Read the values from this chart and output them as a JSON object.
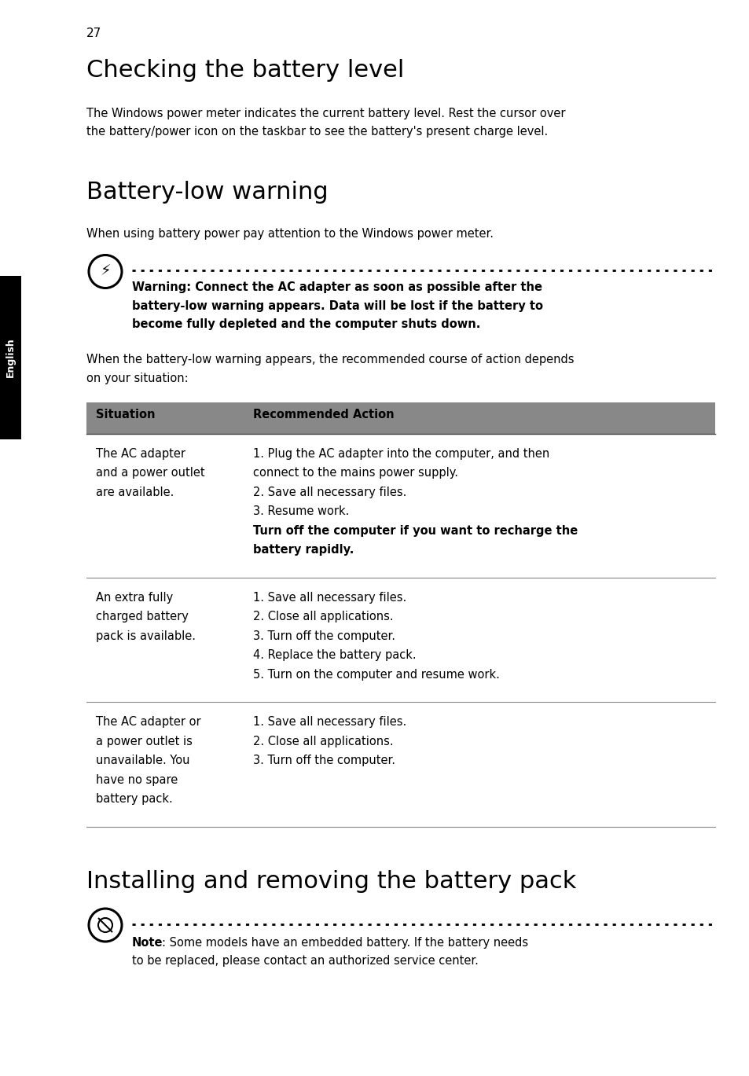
{
  "page_number": "27",
  "sidebar_text": "English",
  "sidebar_bg": "#000000",
  "sidebar_text_color": "#ffffff",
  "bg_color": "#ffffff",
  "text_color": "#000000",
  "section1_title": "Checking the battery level",
  "section1_body_line1": "The Windows power meter indicates the current battery level. Rest the cursor over",
  "section1_body_line2": "the battery/power icon on the taskbar to see the battery's present charge level.",
  "section2_title": "Battery-low warning",
  "section2_body": "When using battery power pay attention to the Windows power meter.",
  "warning_line1": "Warning: Connect the AC adapter as soon as possible after the",
  "warning_line2": "battery-low warning appears. Data will be lost if the battery to",
  "warning_line3": "become fully depleted and the computer shuts down.",
  "section2_body2_line1": "When the battery-low warning appears, the recommended course of action depends",
  "section2_body2_line2": "on your situation:",
  "table_header_bg": "#888888",
  "table_col1_header": "Situation",
  "table_col2_header": "Recommended Action",
  "row1_sit": [
    "The AC adapter",
    "and a power outlet",
    "are available."
  ],
  "row1_act_normal": [
    "1. Plug the AC adapter into the computer, and then",
    "connect to the mains power supply.",
    "2. Save all necessary files.",
    "3. Resume work."
  ],
  "row1_act_bold": [
    "Turn off the computer if you want to recharge the",
    "battery rapidly."
  ],
  "row2_sit": [
    "An extra fully",
    "charged battery",
    "pack is available."
  ],
  "row2_act": [
    "1. Save all necessary files.",
    "2. Close all applications.",
    "3. Turn off the computer.",
    "4. Replace the battery pack.",
    "5. Turn on the computer and resume work."
  ],
  "row3_sit": [
    "The AC adapter or",
    "a power outlet is",
    "unavailable. You",
    "have no spare",
    "battery pack."
  ],
  "row3_act": [
    "1. Save all necessary files.",
    "2. Close all applications.",
    "3. Turn off the computer."
  ],
  "section3_title": "Installing and removing the battery pack",
  "note_line1_bold": "Note",
  "note_line1_rest": ": Some models have an embedded battery. If the battery needs",
  "note_line2": "to be replaced, please contact an authorized service center."
}
